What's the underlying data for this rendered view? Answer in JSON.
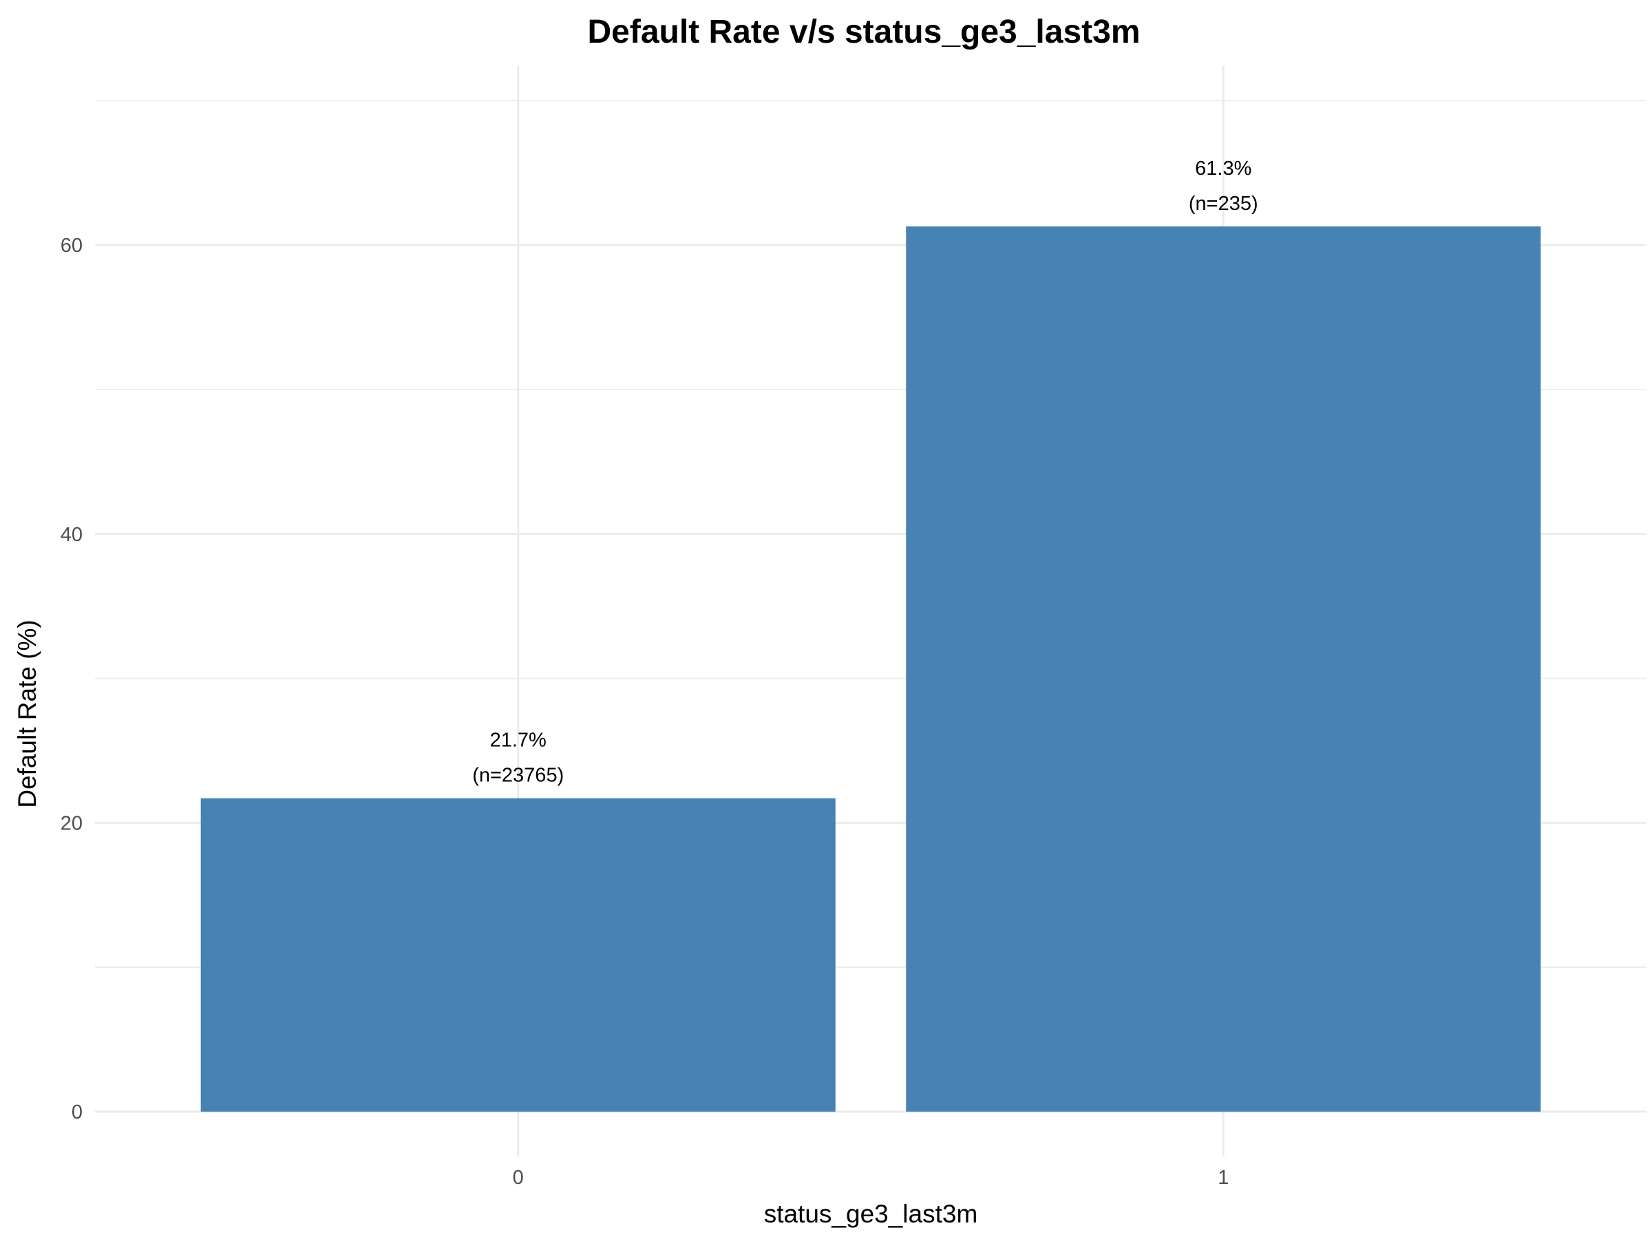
{
  "chart_data": {
    "type": "bar",
    "title": "Default Rate v/s status_ge3_last3m",
    "xlabel": "status_ge3_last3m",
    "ylabel": "Default Rate (%)",
    "categories": [
      "0",
      "1"
    ],
    "values": [
      21.7,
      61.3
    ],
    "data_labels": [
      {
        "rate": "21.7%",
        "count": "(n=23765)"
      },
      {
        "rate": "61.3%",
        "count": "(n=235)"
      }
    ],
    "ylim": [
      -3.1,
      72.4
    ],
    "y_ticks": [
      0,
      20,
      40,
      60
    ],
    "y_minor_ticks": [
      10,
      30,
      50,
      70
    ],
    "grid": true,
    "legend": "none",
    "bar_color": "#4682b4",
    "grid_color": "#ebebeb"
  }
}
